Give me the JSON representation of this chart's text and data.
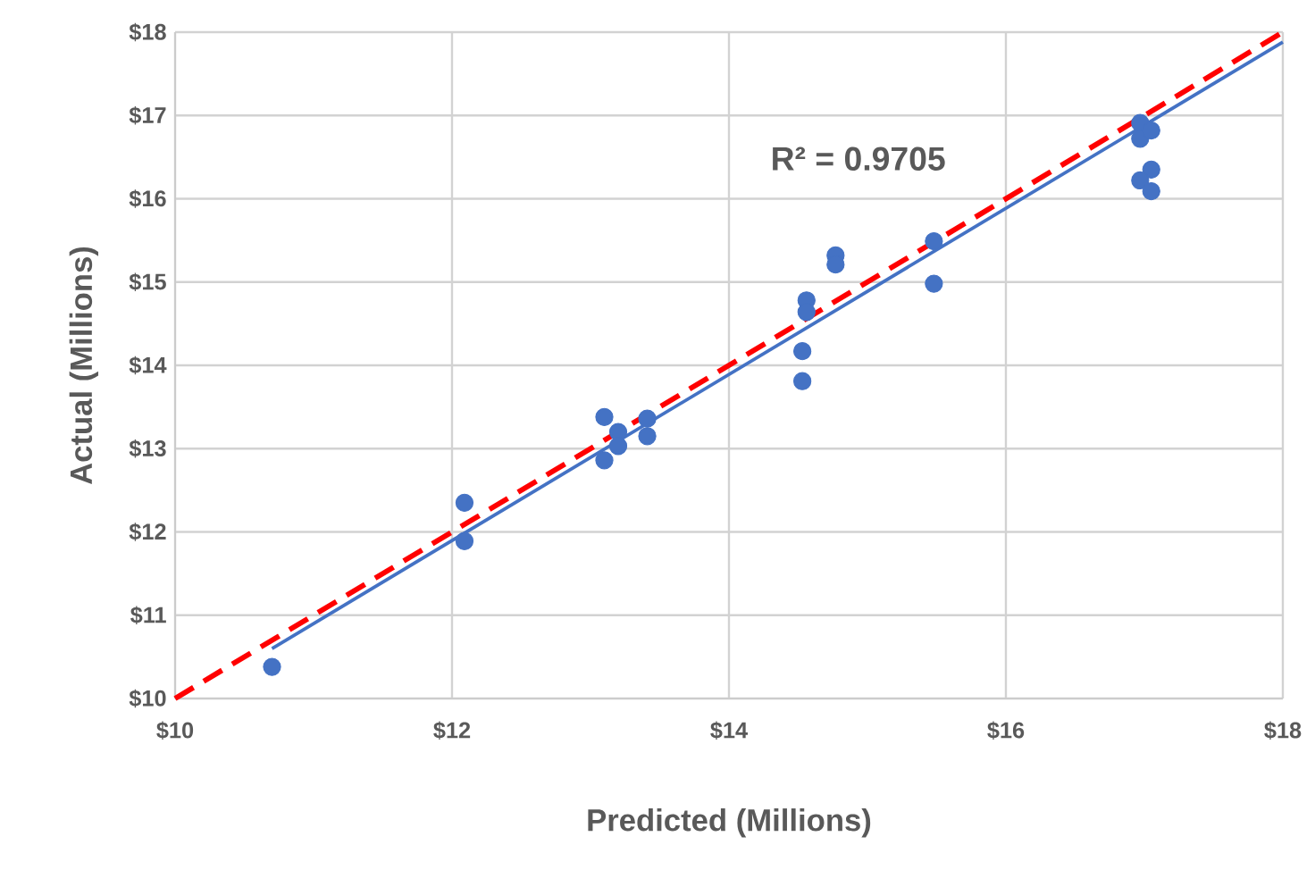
{
  "chart_data": {
    "type": "scatter",
    "xlabel": "Predicted (Millions)",
    "ylabel": "Actual (Millions)",
    "annotations": [
      "R² = 0.9705"
    ],
    "xlim": [
      10,
      18
    ],
    "ylim": [
      10,
      18
    ],
    "xticks": [
      {
        "value": 10,
        "label": "$10"
      },
      {
        "value": 12,
        "label": "$12"
      },
      {
        "value": 14,
        "label": "$14"
      },
      {
        "value": 16,
        "label": "$16"
      },
      {
        "value": 18,
        "label": "$18"
      }
    ],
    "yticks": [
      {
        "value": 10,
        "label": "$10"
      },
      {
        "value": 11,
        "label": "$11"
      },
      {
        "value": 12,
        "label": "$12"
      },
      {
        "value": 13,
        "label": "$13"
      },
      {
        "value": 14,
        "label": "$14"
      },
      {
        "value": 15,
        "label": "$15"
      },
      {
        "value": 16,
        "label": "$16"
      },
      {
        "value": 17,
        "label": "$17"
      },
      {
        "value": 18,
        "label": "$18"
      }
    ],
    "grid": true,
    "series": [
      {
        "type": "line",
        "marker": "none",
        "color": "#ff0000",
        "line_style": "dashed",
        "x": [
          10,
          18
        ],
        "values": [
          10,
          18
        ]
      },
      {
        "marker": "circle",
        "color": "#4472c4",
        "x": [
          10.7,
          12.09,
          12.09,
          13.1,
          13.2,
          13.2,
          13.1,
          13.41,
          13.41,
          14.53,
          14.53,
          14.56,
          14.56,
          14.77,
          14.77,
          15.48,
          15.48,
          16.97,
          16.97,
          17.05,
          17.05,
          16.97,
          17.05
        ],
        "values": [
          10.38,
          12.35,
          11.89,
          13.38,
          13.2,
          13.03,
          12.86,
          13.36,
          13.15,
          14.17,
          13.81,
          14.78,
          14.64,
          15.32,
          15.21,
          15.49,
          14.98,
          16.91,
          16.72,
          16.82,
          16.35,
          16.22,
          16.09
        ]
      },
      {
        "type": "line",
        "marker": "none",
        "color": "#4472c4",
        "line_style": "solid",
        "x": [
          10.7,
          18
        ],
        "values": [
          10.6,
          17.88
        ]
      }
    ]
  }
}
